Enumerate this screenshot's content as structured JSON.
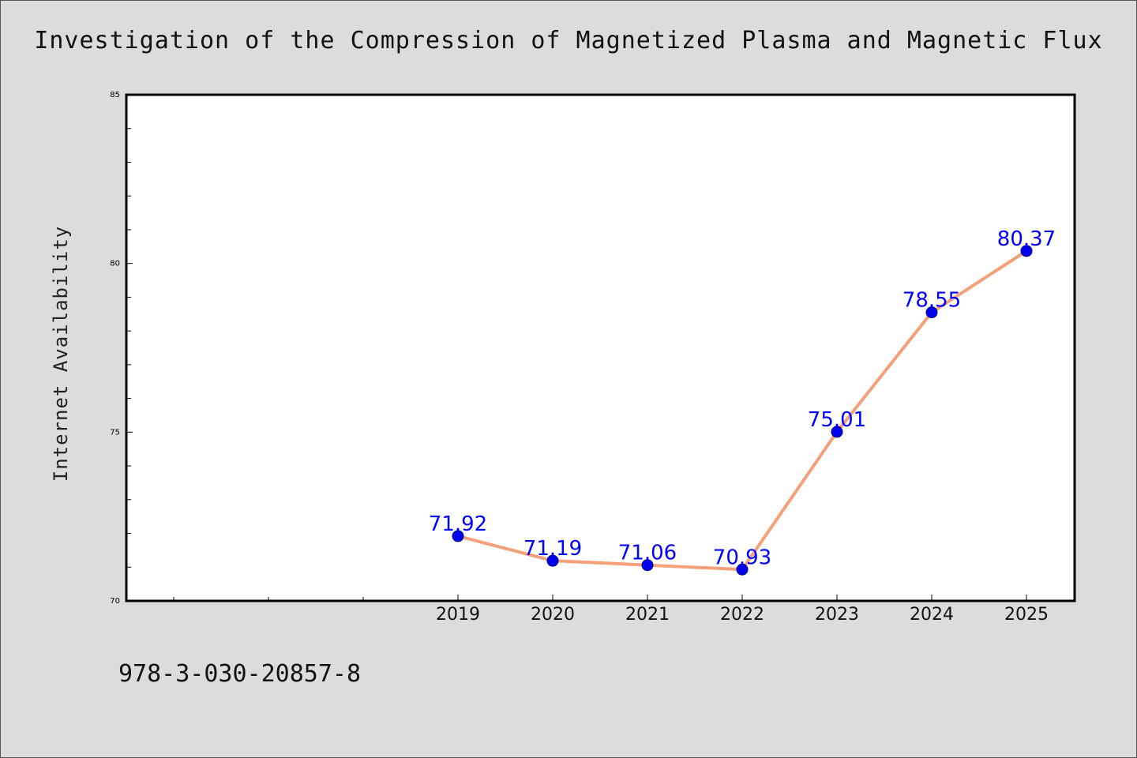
{
  "chart_data": {
    "type": "line",
    "title": "Investigation of the Compression of Magnetized Plasma and Magnetic Flux",
    "xlabel": "",
    "ylabel": "Internet Availability",
    "categories": [
      "2019",
      "2020",
      "2021",
      "2022",
      "2023",
      "2024",
      "2025"
    ],
    "series": [
      {
        "values": [
          71.92,
          71.19,
          71.06,
          70.93,
          75.01,
          78.55,
          80.37
        ]
      }
    ],
    "data_labels": [
      "71.92",
      "71.19",
      "71.06",
      "70.93",
      "75.01",
      "78.55",
      "80.37"
    ],
    "ylim": [
      70,
      85
    ],
    "y_ticks": [
      "70",
      "75",
      "80",
      "85"
    ],
    "grid": false,
    "colors": {
      "line": "#f4a07a",
      "marker": "#0000ee",
      "data_label": "#0000ff",
      "background": "#dcdcdc",
      "plot_background": "#ffffff"
    }
  },
  "footer_text": "978-3-030-20857-8"
}
